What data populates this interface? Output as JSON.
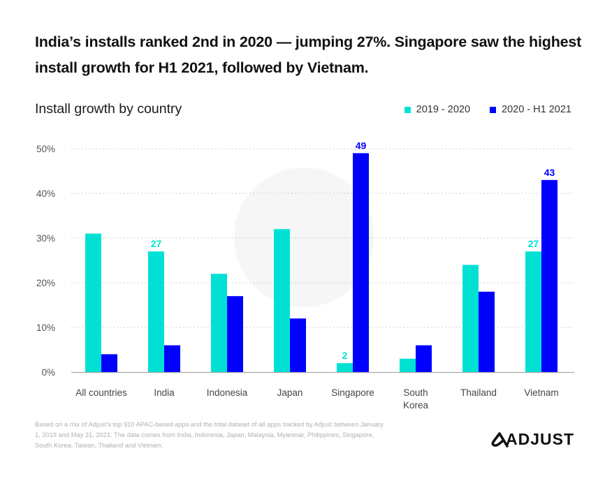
{
  "headline": "India’s installs ranked 2nd in 2020 — jumping 27%. Singapore saw the highest install growth for H1 2021, followed by Vietnam.",
  "chart_data": {
    "type": "bar",
    "title": "Install growth by country",
    "xlabel": "",
    "ylabel": "",
    "ylim": [
      0,
      50
    ],
    "yticks": [
      0,
      10,
      20,
      30,
      40,
      50
    ],
    "ytick_labels": [
      "0%",
      "10%",
      "20%",
      "30%",
      "40%",
      "50%"
    ],
    "grid": true,
    "legend_position": "top-right",
    "categories": [
      "All countries",
      "India",
      "Indonesia",
      "Japan",
      "Singapore",
      "South Korea",
      "Thailand",
      "Vietnam"
    ],
    "series": [
      {
        "name": "2019-2020",
        "color": "#00E1D4",
        "values": [
          31,
          27,
          22,
          32,
          2,
          3,
          24,
          27
        ]
      },
      {
        "name": "2020-H1 2021",
        "color": "#0000FF",
        "values": [
          4,
          6,
          17,
          12,
          49,
          6,
          18,
          43
        ]
      }
    ],
    "data_labels": [
      {
        "series": 0,
        "category": "India",
        "text": "27"
      },
      {
        "series": 0,
        "category": "Singapore",
        "text": "2"
      },
      {
        "series": 1,
        "category": "Singapore",
        "text": "49"
      },
      {
        "series": 0,
        "category": "Vietnam",
        "text": "27"
      },
      {
        "series": 1,
        "category": "Vietnam",
        "text": "43"
      }
    ]
  },
  "legend": {
    "items": [
      {
        "label": "2019 - 2020",
        "color": "#00E1D4"
      },
      {
        "label": "2020 - H1 2021",
        "color": "#0000FF"
      }
    ]
  },
  "footnote": "Based on a mix of Adjust’s top 910 APAC-based apps and the total dataset of all apps tracked by Adjust between January 1, 2019 and May 31, 2021. The data comes from India, Indonesia, Japan, Malaysia, Myanmar, Philippines, Singapore, South Korea, Taiwan, Thailand and Vietnam.",
  "brand": {
    "name": "ADJUST",
    "logo_icon": "adjust-logo-icon"
  }
}
